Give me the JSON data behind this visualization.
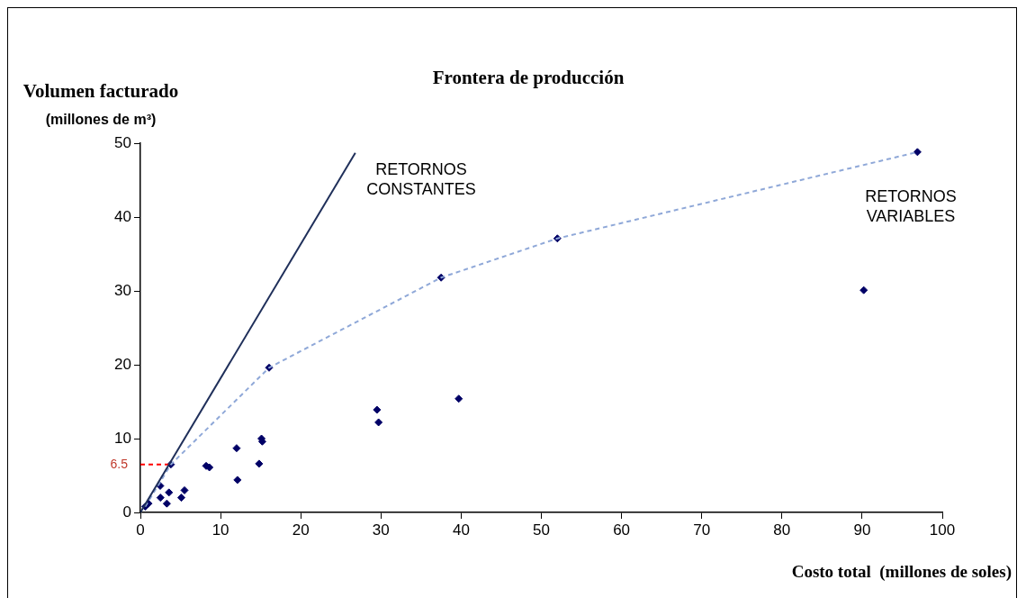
{
  "chart_data": {
    "type": "scatter",
    "title": "Frontera de producción",
    "xlabel": "Costo total  (millones de soles)",
    "ylabel": "Volumen facturado\n(millones de m³)",
    "xlim": [
      0,
      100
    ],
    "xticks": [
      0,
      10,
      20,
      30,
      40,
      50,
      60,
      70,
      80,
      90,
      100
    ],
    "ylim": [
      0,
      50
    ],
    "yticks": [
      0,
      10,
      20,
      30,
      40,
      50
    ],
    "grid": false,
    "legend": false,
    "marker": "diamond",
    "series": [
      {
        "type": "line",
        "color": "#1f2f5a",
        "line_style": "solid",
        "marker": "none",
        "x": [
          0,
          26.8
        ],
        "values": [
          0,
          48.7
        ]
      },
      {
        "type": "line",
        "color": "#8fa8d8",
        "line_style": "dashed",
        "marker": "none",
        "x": [
          0.6,
          3.8,
          16.05,
          37.5,
          52,
          96.9
        ],
        "values": [
          0.8,
          6.5,
          19.6,
          31.8,
          37.1,
          48.8
        ]
      },
      {
        "type": "line",
        "color": "#ff0000",
        "line_style": "dashed",
        "marker": "none",
        "x": [
          0,
          3.8
        ],
        "values": [
          6.5,
          6.5
        ]
      },
      {
        "color": "#000066",
        "x": [
          0.6,
          1.0,
          2.47,
          2.5,
          3.3,
          3.56,
          3.8,
          5.1,
          5.5,
          8.2,
          8.6,
          12.0,
          12.1,
          14.8,
          15.1,
          15.2,
          16.05,
          29.5,
          29.7,
          37.5,
          39.7,
          52,
          90.2,
          96.9
        ],
        "values": [
          0.8,
          1.2,
          3.6,
          2.0,
          1.2,
          2.7,
          6.5,
          2.0,
          3.0,
          6.3,
          6.1,
          8.7,
          4.4,
          6.6,
          10.0,
          9.6,
          19.6,
          13.9,
          12.2,
          31.8,
          15.4,
          37.1,
          30.1,
          48.8
        ]
      }
    ],
    "annotations": [
      {
        "text": "6.5",
        "x": 0,
        "y": 6.5
      },
      "RETORNOS\nCONSTANTES",
      "RETORNOS\nVARIABLES"
    ]
  }
}
